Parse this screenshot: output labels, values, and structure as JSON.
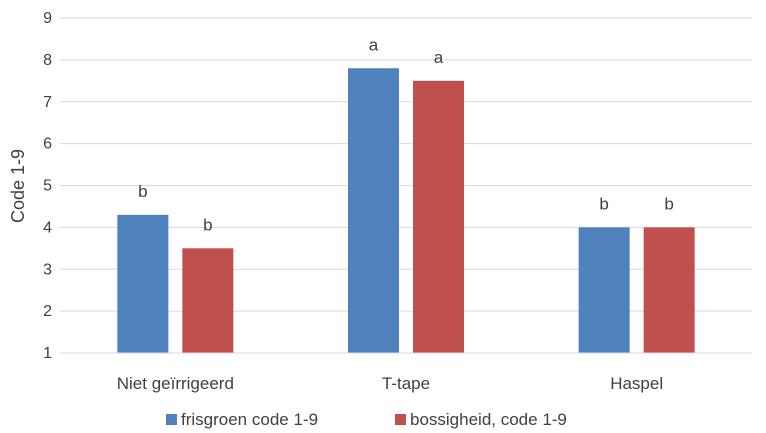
{
  "chart_data": {
    "type": "bar",
    "ylabel": "Code 1-9",
    "xlabel": "",
    "ylim": [
      1,
      9
    ],
    "yticks": [
      1,
      2,
      3,
      4,
      5,
      6,
      7,
      8,
      9
    ],
    "grid": true,
    "legend_position": "bottom",
    "categories": [
      "Niet geïrrigeerd",
      "T-tape",
      "Haspel"
    ],
    "series": [
      {
        "name": "frisgroen code 1-9",
        "color": "#4f81bd",
        "values": [
          4.3,
          7.8,
          4.0
        ],
        "labels": [
          "b",
          "a",
          "b"
        ]
      },
      {
        "name": "bossigheid, code 1-9",
        "color": "#c0504d",
        "values": [
          3.5,
          7.5,
          4.0
        ],
        "labels": [
          "b",
          "a",
          "b"
        ]
      }
    ]
  }
}
